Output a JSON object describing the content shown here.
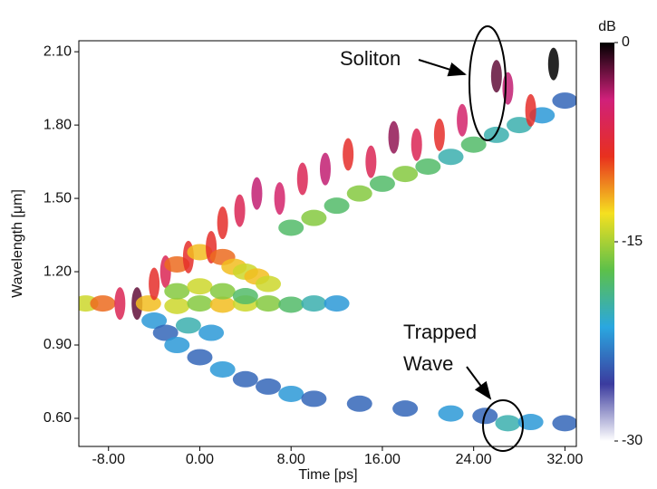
{
  "chart_data": {
    "type": "spectrogram",
    "x_label": "Time [ps]",
    "y_label": "Wavelength [μm]",
    "xlim": [
      -10.6,
      33
    ],
    "ylim": [
      0.485,
      2.145
    ],
    "xticks": [
      {
        "value": -8,
        "label": "-8.00"
      },
      {
        "value": 0,
        "label": "0.00"
      },
      {
        "value": 8,
        "label": "8.00"
      },
      {
        "value": 16,
        "label": "16.00"
      },
      {
        "value": 24,
        "label": "24.00"
      },
      {
        "value": 32,
        "label": "32.00"
      }
    ],
    "yticks": [
      {
        "value": 0.6,
        "label": "0.60"
      },
      {
        "value": 0.9,
        "label": "0.90"
      },
      {
        "value": 1.2,
        "label": "1.20"
      },
      {
        "value": 1.5,
        "label": "1.50"
      },
      {
        "value": 1.8,
        "label": "1.80"
      },
      {
        "value": 2.1,
        "label": "2.10"
      }
    ],
    "colorbar": {
      "title": "dB",
      "lim": [
        -30,
        0
      ],
      "ticks": [
        0,
        -15,
        -30
      ],
      "colors": [
        "#ffffff",
        "#3b3b9e",
        "#2aa7e0",
        "#5cc04a",
        "#f5e020",
        "#e8301e",
        "#d0207a",
        "#000000"
      ]
    },
    "annotations": [
      {
        "text": [
          "Soliton"
        ]
      },
      {
        "text": [
          "Trapped",
          "Wave"
        ]
      }
    ],
    "cells": [
      [
        -10,
        1.07,
        -14
      ],
      [
        -8.5,
        1.07,
        -10
      ],
      [
        -7,
        1.07,
        -6
      ],
      [
        -5.5,
        1.07,
        -2
      ],
      [
        -4.5,
        1.07,
        -12
      ],
      [
        -2,
        1.06,
        -14
      ],
      [
        0,
        1.07,
        -16
      ],
      [
        2,
        1.065,
        -12
      ],
      [
        4,
        1.07,
        -14
      ],
      [
        6,
        1.07,
        -16
      ],
      [
        8,
        1.065,
        -18
      ],
      [
        10,
        1.07,
        -20
      ],
      [
        12,
        1.07,
        -22
      ],
      [
        -4,
        1.15,
        -8
      ],
      [
        -3,
        1.2,
        -6
      ],
      [
        -2,
        1.23,
        -10
      ],
      [
        -1,
        1.26,
        -8
      ],
      [
        0,
        1.28,
        -12
      ],
      [
        1,
        1.3,
        -8
      ],
      [
        2,
        1.26,
        -10
      ],
      [
        3,
        1.22,
        -12
      ],
      [
        4,
        1.2,
        -14
      ],
      [
        5,
        1.18,
        -12
      ],
      [
        6,
        1.15,
        -14
      ],
      [
        8,
        1.38,
        -18
      ],
      [
        10,
        1.42,
        -16
      ],
      [
        12,
        1.47,
        -18
      ],
      [
        14,
        1.52,
        -16
      ],
      [
        16,
        1.56,
        -18
      ],
      [
        18,
        1.6,
        -16
      ],
      [
        20,
        1.63,
        -18
      ],
      [
        22,
        1.67,
        -20
      ],
      [
        24,
        1.72,
        -18
      ],
      [
        26,
        1.76,
        -20
      ],
      [
        28,
        1.8,
        -20
      ],
      [
        30,
        1.84,
        -22
      ],
      [
        32,
        1.9,
        -24
      ],
      [
        2,
        1.4,
        -8
      ],
      [
        3.5,
        1.45,
        -6
      ],
      [
        5,
        1.52,
        -4
      ],
      [
        7,
        1.5,
        -5
      ],
      [
        9,
        1.58,
        -6
      ],
      [
        11,
        1.62,
        -4
      ],
      [
        13,
        1.68,
        -8
      ],
      [
        15,
        1.65,
        -6
      ],
      [
        17,
        1.75,
        -3
      ],
      [
        19,
        1.72,
        -6
      ],
      [
        21,
        1.76,
        -8
      ],
      [
        23,
        1.82,
        -5
      ],
      [
        26,
        2.0,
        -2
      ],
      [
        27,
        1.95,
        -4
      ],
      [
        29,
        1.86,
        -8
      ],
      [
        31,
        2.05,
        0
      ],
      [
        -4,
        1.0,
        -22
      ],
      [
        -3,
        0.95,
        -24
      ],
      [
        -2,
        0.9,
        -22
      ],
      [
        0,
        0.85,
        -24
      ],
      [
        2,
        0.8,
        -22
      ],
      [
        4,
        0.76,
        -24
      ],
      [
        6,
        0.73,
        -24
      ],
      [
        8,
        0.7,
        -22
      ],
      [
        10,
        0.68,
        -24
      ],
      [
        14,
        0.66,
        -24
      ],
      [
        18,
        0.64,
        -24
      ],
      [
        22,
        0.62,
        -22
      ],
      [
        25,
        0.61,
        -24
      ],
      [
        27,
        0.58,
        -20
      ],
      [
        29,
        0.585,
        -22
      ],
      [
        32,
        0.58,
        -24
      ],
      [
        -2,
        1.12,
        -16
      ],
      [
        0,
        1.14,
        -14
      ],
      [
        2,
        1.12,
        -16
      ],
      [
        4,
        1.1,
        -18
      ],
      [
        -1,
        0.98,
        -20
      ],
      [
        1,
        0.95,
        -22
      ]
    ]
  }
}
